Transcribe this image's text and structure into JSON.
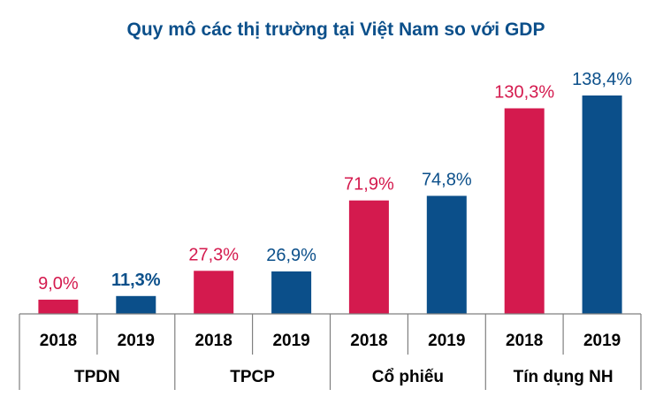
{
  "chart_data": {
    "type": "bar",
    "title": "Quy mô các thị trường tại Việt Nam so với GDP",
    "groups": [
      "TPDN",
      "TPCP",
      "Cổ phiếu",
      "Tín dụng NH"
    ],
    "years": [
      "2018",
      "2019"
    ],
    "series": [
      {
        "name": "2018",
        "values": [
          9.0,
          27.3,
          71.9,
          130.3
        ],
        "labels": [
          "9,0%",
          "27,3%",
          "71,9%",
          "130,3%"
        ],
        "color": "#D41A4E"
      },
      {
        "name": "2019",
        "values": [
          11.3,
          26.9,
          74.8,
          138.4
        ],
        "labels": [
          "11,3%",
          "26,9%",
          "74,8%",
          "138,4%"
        ],
        "color": "#0B4F8A"
      }
    ],
    "bold_labels": [
      "11,3%"
    ],
    "title_color": "#0B4F8A",
    "ylim": [
      0,
      160
    ],
    "grid": false,
    "legend": "none"
  }
}
